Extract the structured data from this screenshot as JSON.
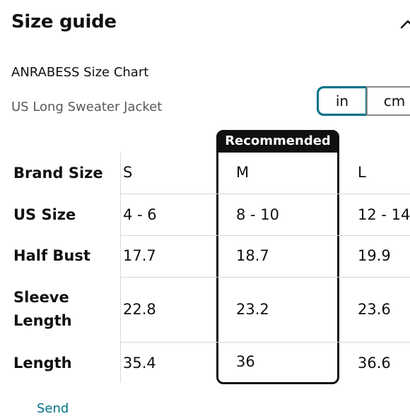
{
  "header": {
    "title": "Size guide",
    "collapse_icon": "chevron-up-icon"
  },
  "chart_title": "ANRABESS Size Chart",
  "product_name": "US Long Sweater Jacket",
  "units": {
    "options": [
      "in",
      "cm"
    ],
    "selected": "in"
  },
  "recommended_label": "Recommended",
  "columns": [
    "S",
    "M",
    "L"
  ],
  "recommended_column": "M",
  "rows": [
    {
      "label": "Brand Size",
      "values": [
        "S",
        "M",
        "L"
      ]
    },
    {
      "label": "US Size",
      "values": [
        "4 - 6",
        "8 - 10",
        "12 - 14"
      ]
    },
    {
      "label": "Half Bust",
      "values": [
        "17.7",
        "18.7",
        "19.9"
      ]
    },
    {
      "label": "Sleeve Length",
      "label_lines": [
        "Sleeve",
        "Length"
      ],
      "values": [
        "22.8",
        "23.2",
        "23.6"
      ]
    },
    {
      "label": "Length",
      "values": [
        "35.4",
        "36",
        "36.6"
      ]
    }
  ],
  "footer_link": "Send",
  "colors": {
    "accent": "#007185",
    "text": "#0f1111",
    "muted": "#565959",
    "border": "#d5d9d9"
  }
}
